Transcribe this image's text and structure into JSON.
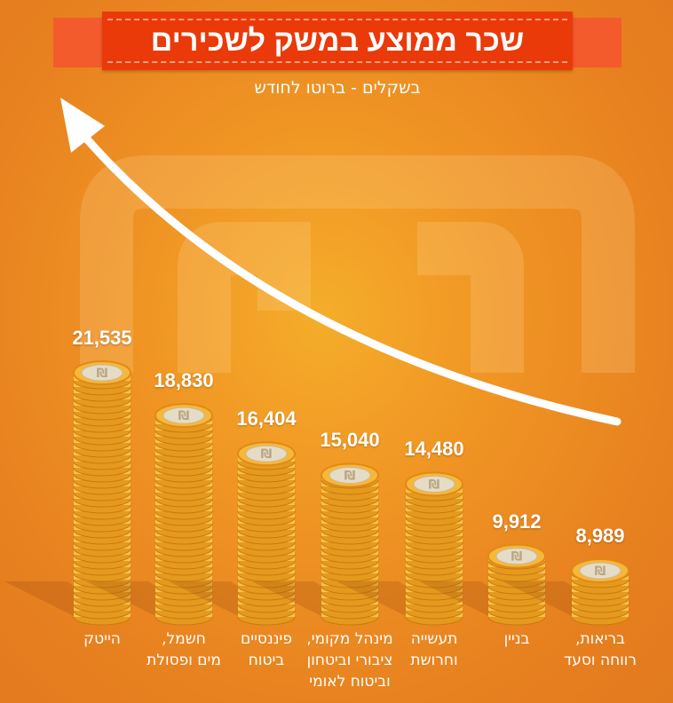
{
  "chart_data": {
    "type": "bar",
    "title": "שכר ממוצע במשק לשכירים",
    "subtitle": "בשקלים - ברוטו לחודש",
    "categories": [
      "הייטק",
      "חשמל, מים ופסולת",
      "פיננסיים ביטוח",
      "מינהל מקומי, ציבורי וביטחון וביטוח לאומי",
      "תעשייה וחרושת",
      "בניין",
      "בריאות, רווחה וסעד"
    ],
    "category_lines": [
      [
        "הייטק"
      ],
      [
        "חשמל,",
        "מים ופסולת"
      ],
      [
        "פיננסיים",
        "ביטוח"
      ],
      [
        "מינהל מקומי,",
        "ציבורי וביטחון",
        "וביטוח לאומי"
      ],
      [
        "תעשייה",
        "וחרושת"
      ],
      [
        "בניין"
      ],
      [
        "בריאות,",
        "רווחה וסעד"
      ]
    ],
    "values": [
      21535,
      18830,
      16404,
      15040,
      14480,
      9912,
      8989
    ],
    "value_labels": [
      "21,535",
      "18,830",
      "16,404",
      "15,040",
      "14,480",
      "9,912",
      "8,989"
    ],
    "unit": "ILS",
    "colors": {
      "background": "#f09524",
      "ribbon": "#ea3a0a",
      "coin": "#f6b83a",
      "arrow": "#ffffff"
    }
  }
}
